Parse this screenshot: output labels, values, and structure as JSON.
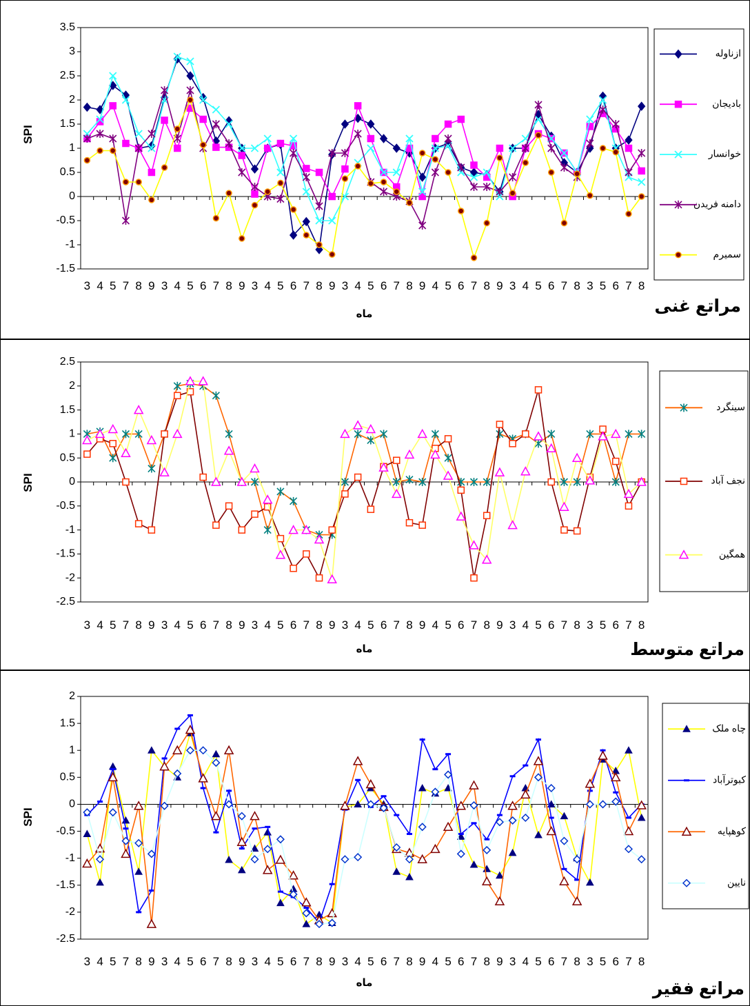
{
  "chart_data": [
    {
      "type": "line",
      "title": "مراتع غنی",
      "xlabel": "ماه",
      "ylabel": "SPI",
      "ylim": [
        -1.5,
        3.5
      ],
      "yticks": [
        -1.5,
        -1,
        -0.5,
        0,
        0.5,
        1,
        1.5,
        2,
        2.5,
        3,
        3.5
      ],
      "ytick_labels": [
        "-1.5",
        "-1",
        "-0.5",
        "0",
        "0.5",
        "1",
        "1.5",
        "2",
        "2.5",
        "3",
        "3.5"
      ],
      "categories": [
        "3",
        "4",
        "5",
        "7",
        "8",
        "9",
        "3",
        "4",
        "5",
        "6",
        "7",
        "8",
        "9",
        "3",
        "4",
        "5",
        "6",
        "7",
        "8",
        "9",
        "3",
        "4",
        "5",
        "6",
        "7",
        "8",
        "9",
        "4",
        "5",
        "6",
        "7",
        "8",
        "9",
        "3",
        "4",
        "5",
        "6",
        "7",
        "8",
        "3",
        "5",
        "6",
        "7",
        "8"
      ],
      "grid": false,
      "legend": "right",
      "series": [
        {
          "name": "ازناوله",
          "color": "#000080",
          "marker": "diamond",
          "values": [
            1.85,
            1.8,
            2.3,
            2.1,
            1.0,
            1.05,
            2.05,
            2.85,
            2.5,
            2.05,
            1.15,
            1.57,
            1.0,
            0.57,
            1.0,
            1.08,
            -0.8,
            -0.52,
            -1.1,
            0.87,
            1.5,
            1.62,
            1.5,
            1.2,
            1.0,
            0.9,
            0.4,
            1.0,
            1.1,
            0.6,
            0.5,
            0.45,
            0.1,
            1.0,
            1.0,
            1.7,
            1.25,
            0.7,
            0.5,
            1.0,
            2.08,
            1.0,
            1.17,
            1.87
          ]
        },
        {
          "name": "بادیجان",
          "color": "#ff00ff",
          "marker": "square",
          "values": [
            1.2,
            1.55,
            1.88,
            1.1,
            1.0,
            0.5,
            1.58,
            1.0,
            1.83,
            1.6,
            1.02,
            1.02,
            0.85,
            0.05,
            1.0,
            1.1,
            1.05,
            0.58,
            0.5,
            0.0,
            0.57,
            1.88,
            1.2,
            0.5,
            0.2,
            1.0,
            0.0,
            1.2,
            1.5,
            1.6,
            0.65,
            0.4,
            1.0,
            0.0,
            1.0,
            1.3,
            1.2,
            0.9,
            0.5,
            1.45,
            1.72,
            1.4,
            1.0,
            0.53
          ]
        },
        {
          "name": "خوانسار",
          "color": "#33ffff",
          "marker": "x",
          "values": [
            1.3,
            1.6,
            2.5,
            2.0,
            1.3,
            1.0,
            2.0,
            2.9,
            2.8,
            2.0,
            1.8,
            1.5,
            1.0,
            1.0,
            1.2,
            0.5,
            1.2,
            0.1,
            -0.5,
            -0.5,
            0.0,
            0.7,
            1.0,
            0.5,
            0.5,
            1.2,
            0.1,
            1.0,
            1.05,
            0.5,
            0.4,
            0.5,
            0.0,
            1.0,
            1.2,
            1.6,
            1.2,
            0.9,
            0.5,
            1.6,
            2.0,
            1.0,
            0.4,
            0.3
          ]
        },
        {
          "name": "دامنه فریدن",
          "color": "#800080",
          "marker": "asterisk",
          "values": [
            1.2,
            1.3,
            1.2,
            -0.5,
            1.0,
            1.3,
            2.2,
            1.2,
            2.2,
            1.0,
            1.5,
            1.1,
            0.5,
            0.2,
            0.0,
            -0.05,
            0.9,
            0.4,
            -0.2,
            0.9,
            0.9,
            1.3,
            0.3,
            0.1,
            0.0,
            -0.1,
            -0.6,
            0.5,
            1.2,
            0.6,
            0.2,
            0.2,
            0.1,
            0.4,
            1.0,
            1.9,
            1.0,
            0.6,
            0.4,
            1.1,
            1.8,
            1.5,
            0.5,
            0.9
          ]
        },
        {
          "name": "سمیرم",
          "color": "#ffff00",
          "marker": "circle",
          "values": [
            0.75,
            0.95,
            0.95,
            0.3,
            0.3,
            -0.07,
            0.6,
            1.4,
            2.0,
            1.07,
            -0.45,
            0.07,
            -0.87,
            -0.18,
            0.1,
            0.28,
            -0.27,
            -0.8,
            -1.0,
            -1.2,
            0.37,
            0.63,
            0.27,
            0.3,
            0.1,
            -0.13,
            0.9,
            0.77,
            0.5,
            -0.3,
            -1.27,
            -0.55,
            0.8,
            0.07,
            0.7,
            1.27,
            0.5,
            -0.55,
            0.47,
            0.02,
            1.0,
            0.92,
            -0.36,
            0.0
          ]
        }
      ]
    },
    {
      "type": "line",
      "title": "مراتع متوسط",
      "xlabel": "ماه",
      "ylabel": "SPI",
      "ylim": [
        -2.5,
        2.5
      ],
      "yticks": [
        -2.5,
        -2,
        -1.5,
        -1,
        -0.5,
        0,
        0.5,
        1,
        1.5,
        2,
        2.5
      ],
      "ytick_labels": [
        "-2.5",
        "-2",
        "-1.5",
        "-1",
        "-0.5",
        "0",
        "0.5",
        "1",
        "1.5",
        "2",
        "2.5"
      ],
      "categories": [
        "3",
        "4",
        "5",
        "7",
        "8",
        "9",
        "3",
        "4",
        "5",
        "6",
        "7",
        "8",
        "9",
        "3",
        "4",
        "5",
        "6",
        "7",
        "8",
        "9",
        "3",
        "4",
        "5",
        "6",
        "7",
        "8",
        "9",
        "4",
        "5",
        "6",
        "7",
        "8",
        "9",
        "3",
        "4",
        "5",
        "6",
        "7",
        "8",
        "3",
        "5",
        "6",
        "7",
        "8"
      ],
      "grid": false,
      "legend": "right",
      "series": [
        {
          "name": "سینگرد",
          "color": "#ff6600",
          "marker_color": "#008080",
          "marker": "asterisk",
          "values": [
            1.0,
            1.05,
            0.5,
            1.0,
            1.0,
            0.28,
            1.0,
            2.0,
            2.05,
            2.0,
            1.8,
            1.0,
            0.0,
            0.0,
            -1.0,
            -0.2,
            -0.4,
            -1.0,
            -1.1,
            -1.1,
            0.0,
            1.0,
            0.87,
            1.0,
            0.0,
            0.05,
            0.0,
            1.0,
            0.5,
            0.0,
            0.0,
            0.0,
            1.0,
            0.9,
            1.0,
            0.8,
            1.0,
            0.0,
            0.0,
            1.0,
            1.0,
            0.0,
            1.0,
            1.0
          ]
        },
        {
          "name": "نجف آباد",
          "color": "#800000",
          "marker_color": "#ff3300",
          "marker": "square",
          "values": [
            0.58,
            0.9,
            0.8,
            0.0,
            -0.87,
            -1.0,
            1.0,
            1.8,
            1.88,
            0.1,
            -0.9,
            -0.5,
            -1.0,
            -0.67,
            -0.52,
            -1.18,
            -1.8,
            -1.5,
            -2.0,
            -1.0,
            -0.25,
            0.1,
            -0.57,
            0.32,
            0.45,
            -0.85,
            -0.9,
            0.7,
            0.9,
            -0.17,
            -2.0,
            -0.7,
            1.2,
            0.8,
            1.0,
            1.92,
            0.0,
            -1.0,
            -1.02,
            0.1,
            1.1,
            0.43,
            -0.5,
            0.0
          ]
        },
        {
          "name": "همگین",
          "color": "#ffff66",
          "marker_color": "#ff00ff",
          "marker": "triangle",
          "values": [
            0.87,
            1.0,
            1.1,
            0.6,
            1.5,
            0.87,
            0.2,
            1.0,
            2.1,
            2.1,
            0.0,
            0.65,
            0.0,
            0.28,
            -0.37,
            -1.52,
            -1.0,
            -1.0,
            -1.2,
            -2.03,
            1.0,
            1.18,
            1.1,
            0.3,
            -0.25,
            0.57,
            1.0,
            0.57,
            0.13,
            -0.72,
            -1.32,
            -1.62,
            0.2,
            -0.9,
            0.22,
            0.95,
            0.7,
            -0.52,
            0.5,
            0.03,
            0.95,
            1.0,
            -0.25,
            0.0
          ]
        }
      ]
    },
    {
      "type": "line",
      "title": "مراتع فقیر",
      "xlabel": "ماه",
      "ylabel": "SPI",
      "ylim": [
        -2.5,
        2
      ],
      "yticks": [
        -2.5,
        -2,
        -1.5,
        -1,
        -0.5,
        0,
        0.5,
        1,
        1.5,
        2
      ],
      "ytick_labels": [
        "-2.5",
        "-2",
        "-1.5",
        "-1",
        "-0.5",
        "0",
        "0.5",
        "1",
        "1.5",
        "2"
      ],
      "categories": [
        "3",
        "4",
        "5",
        "7",
        "8",
        "9",
        "3",
        "4",
        "5",
        "6",
        "7",
        "8",
        "9",
        "3",
        "4",
        "5",
        "6",
        "7",
        "8",
        "9",
        "3",
        "4",
        "5",
        "6",
        "7",
        "8",
        "9",
        "4",
        "5",
        "6",
        "7",
        "8",
        "9",
        "3",
        "4",
        "5",
        "6",
        "7",
        "8",
        "3",
        "5",
        "6",
        "7",
        "8"
      ],
      "grid": false,
      "legend": "right",
      "series": [
        {
          "name": "چاه ملک",
          "color": "#ffff00",
          "marker_color": "#000080",
          "marker": "filled-triangle",
          "values": [
            -0.55,
            -1.45,
            0.7,
            -0.3,
            -1.25,
            1.0,
            0.7,
            0.5,
            1.32,
            0.5,
            0.93,
            -1.03,
            -1.22,
            -0.82,
            -0.52,
            -1.83,
            -1.57,
            -2.22,
            -2.05,
            -2.2,
            -0.05,
            0.0,
            0.3,
            0.0,
            -1.25,
            -1.35,
            0.3,
            0.2,
            0.3,
            -0.6,
            -1.12,
            -1.2,
            -1.32,
            -0.9,
            0.3,
            -0.57,
            0.0,
            -0.22,
            -1.0,
            -1.45,
            0.83,
            0.62,
            1.0,
            -0.25
          ]
        },
        {
          "name": "کبوترآباد",
          "color": "#0000ff",
          "marker": "dash",
          "values": [
            -0.2,
            0.05,
            0.65,
            -0.45,
            -2.0,
            -1.6,
            0.85,
            1.4,
            1.65,
            0.3,
            -0.52,
            0.25,
            -0.82,
            -0.45,
            -0.42,
            -1.62,
            -1.72,
            -1.92,
            -2.2,
            -1.48,
            -0.1,
            0.45,
            -0.05,
            0.15,
            -0.2,
            -0.55,
            1.2,
            0.65,
            0.93,
            -0.55,
            -0.35,
            -0.65,
            -0.2,
            0.52,
            0.72,
            1.2,
            -0.25,
            -1.2,
            -1.4,
            0.25,
            1.0,
            0.22,
            -0.25,
            0.0
          ]
        },
        {
          "name": "کوهپایه",
          "color": "#ff6600",
          "marker_color": "#800000",
          "marker": "triangle",
          "values": [
            -1.1,
            -0.82,
            0.5,
            -0.92,
            -0.03,
            -2.22,
            0.7,
            1.0,
            1.38,
            0.48,
            -0.22,
            1.0,
            -0.7,
            -0.22,
            -1.22,
            -1.03,
            -1.32,
            -1.82,
            -2.15,
            -2.02,
            -0.03,
            0.8,
            0.37,
            -0.05,
            -0.83,
            -0.9,
            -1.02,
            -0.83,
            -0.42,
            -0.03,
            0.35,
            -1.43,
            -1.8,
            -0.03,
            0.18,
            0.8,
            -0.5,
            -1.43,
            -1.8,
            0.38,
            0.9,
            0.5,
            -0.5,
            -0.02
          ]
        },
        {
          "name": "نایین",
          "color": "#ccffff",
          "marker_color": "#0033cc",
          "marker": "diamond-open",
          "values": [
            -0.15,
            -1.02,
            -0.15,
            -0.68,
            -0.72,
            -0.92,
            -0.03,
            0.57,
            1.0,
            1.0,
            0.77,
            0.0,
            -0.22,
            -1.02,
            -0.83,
            -0.65,
            -1.67,
            -2.02,
            -2.22,
            -2.2,
            -1.02,
            -0.98,
            0.0,
            -0.07,
            -0.8,
            -1.02,
            -0.42,
            0.23,
            0.55,
            -0.92,
            -0.02,
            -0.85,
            -0.33,
            -0.3,
            -0.25,
            0.5,
            0.3,
            -0.68,
            -1.02,
            0.0,
            0.0,
            0.05,
            -0.83,
            -1.02
          ]
        }
      ]
    }
  ]
}
